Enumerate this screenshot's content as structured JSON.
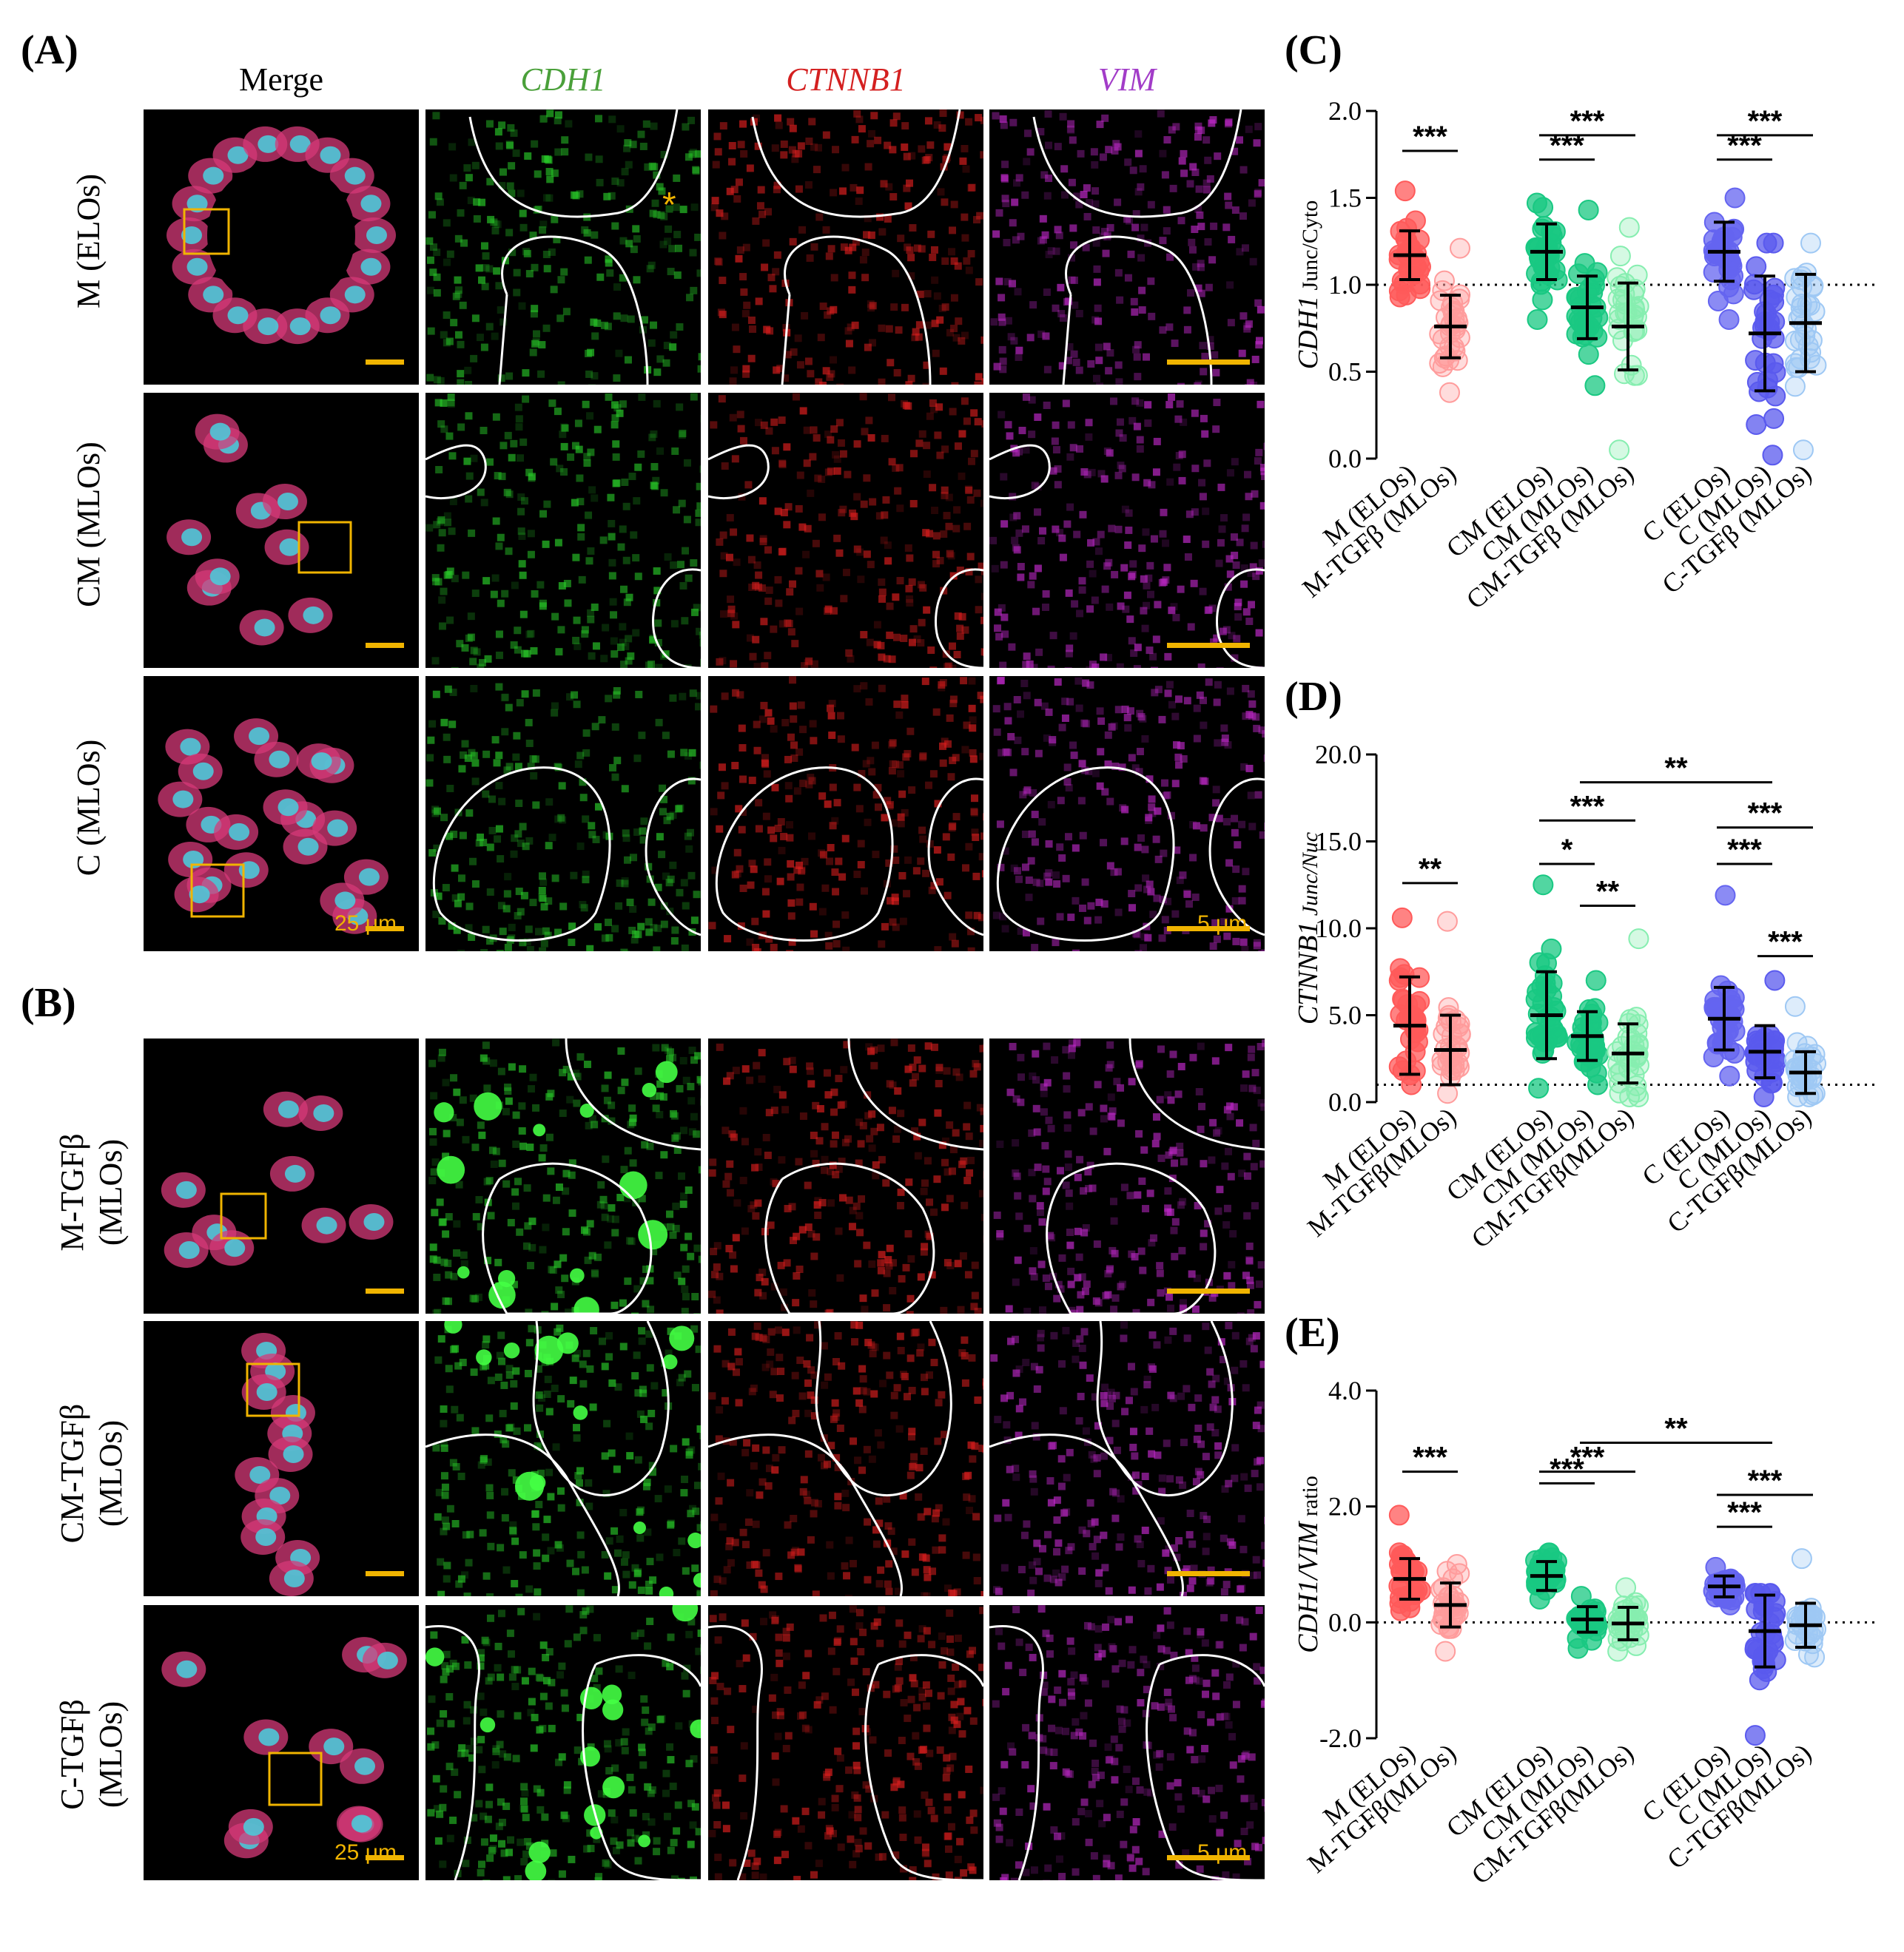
{
  "panels": {
    "A": "(A)",
    "B": "(B)",
    "C": "(C)",
    "D": "(D)",
    "E": "(E)"
  },
  "columns": [
    "Merge",
    "CDH1",
    "CTNNB1",
    "VIM"
  ],
  "column_colors": [
    "#000000",
    "#4aa03a",
    "#d42020",
    "#a23cc8"
  ],
  "rows_A": [
    "M (ELOs)",
    "CM (MLOs)",
    "C (MLOs)"
  ],
  "rows_B": [
    "M-TGFβ\n(MLOs)",
    "CM-TGFβ\n(MLOs)",
    "C-TGFβ\n(MLOs)"
  ],
  "scale_bars": {
    "merge": "25 μm",
    "zoom": "5 μm"
  },
  "asterisk": "*",
  "chart_data": [
    {
      "panel": "C",
      "type": "scatter",
      "ylabel_main": "CDH1",
      "ylabel_sub": " Junc/Cyto",
      "yticks": [
        "0.0",
        "0.5",
        "1.0",
        "1.5",
        "2.0"
      ],
      "ylim": [
        0,
        2
      ],
      "reference_line": 1.0,
      "categories": [
        "M (ELOs)",
        "M-TGFβ (MLOs)",
        "CM (ELOs)",
        "CM (MLOs)",
        "CM-TGFβ (MLOs)",
        "C (ELOs)",
        "C (MLOs)",
        "C-TGFβ (MLOs)"
      ],
      "means": [
        1.17,
        0.76,
        1.19,
        0.87,
        0.76,
        1.19,
        0.72,
        0.78
      ],
      "sd": [
        0.14,
        0.18,
        0.16,
        0.18,
        0.25,
        0.17,
        0.33,
        0.28
      ],
      "ranges": [
        [
          0.93,
          1.54
        ],
        [
          0.38,
          1.21
        ],
        [
          0.8,
          1.47
        ],
        [
          0.42,
          1.43
        ],
        [
          0.05,
          1.33
        ],
        [
          0.8,
          1.5
        ],
        [
          0.02,
          1.24
        ],
        [
          0.05,
          1.24
        ]
      ],
      "significance": [
        {
          "from": 0,
          "to": 1,
          "label": "***",
          "level": 1.77
        },
        {
          "from": 2,
          "to": 3,
          "label": "***",
          "level": 1.72
        },
        {
          "from": 2,
          "to": 4,
          "label": "***",
          "level": 1.86
        },
        {
          "from": 5,
          "to": 6,
          "label": "***",
          "level": 1.72
        },
        {
          "from": 5,
          "to": 7,
          "label": "***",
          "level": 1.86
        }
      ]
    },
    {
      "panel": "D",
      "type": "scatter",
      "ylabel_main": "CTNNB1",
      "ylabel_sub": " Junc/Nuc",
      "ylabel_sub_italic": true,
      "yticks": [
        "0.0",
        "5.0",
        "10.0",
        "15.0",
        "20.0"
      ],
      "ylim": [
        0,
        20
      ],
      "reference_line": 1.0,
      "categories": [
        "M (ELOs)",
        "M-TGFβ(MLOs)",
        "CM (ELOs)",
        "CM (MLOs)",
        "CM-TGFβ(MLOs)",
        "C (ELOs)",
        "C (MLOs)",
        "C-TGFβ(MLOs)"
      ],
      "means": [
        4.4,
        3.0,
        5.0,
        3.8,
        2.8,
        4.8,
        2.9,
        1.7
      ],
      "sd": [
        2.8,
        2.0,
        2.5,
        1.4,
        1.7,
        1.8,
        1.5,
        1.2
      ],
      "ranges": [
        [
          1.0,
          10.6
        ],
        [
          0.5,
          10.4
        ],
        [
          0.8,
          12.5
        ],
        [
          1.0,
          7.0
        ],
        [
          0.3,
          9.4
        ],
        [
          1.5,
          11.9
        ],
        [
          0.3,
          7.0
        ],
        [
          0.3,
          5.5
        ]
      ],
      "significance": [
        {
          "from": 0,
          "to": 1,
          "label": "**",
          "level": 12.6
        },
        {
          "from": 2,
          "to": 3,
          "label": "*",
          "level": 13.7
        },
        {
          "from": 2,
          "to": 4,
          "label": "***",
          "level": 16.2
        },
        {
          "from": 3,
          "to": 4,
          "label": "**",
          "level": 11.3
        },
        {
          "from": 3,
          "to": 6,
          "label": "**",
          "level": 18.4
        },
        {
          "from": 5,
          "to": 6,
          "label": "***",
          "level": 13.7
        },
        {
          "from": 5,
          "to": 7,
          "label": "***",
          "level": 15.8
        },
        {
          "from": 6,
          "to": 7,
          "label": "***",
          "level": 8.4
        }
      ]
    },
    {
      "panel": "E",
      "type": "scatter",
      "ylabel_main": "CDH1/VIM",
      "ylabel_sub": " ratio",
      "ylabel_sub_italic": false,
      "yticks": [
        "-2.0",
        "0.0",
        "2.0",
        "4.0"
      ],
      "ylim": [
        -2,
        4
      ],
      "reference_line": 0.0,
      "categories": [
        "M (ELOs)",
        "M-TGFβ(MLOs)",
        "CM (ELOs)",
        "CM (MLOs)",
        "CM-TGFβ(MLOs)",
        "C (ELOs)",
        "C (MLOs)",
        "C-TGFβ(MLOs)"
      ],
      "means": [
        0.75,
        0.3,
        0.8,
        0.05,
        -0.02,
        0.62,
        -0.15,
        -0.05
      ],
      "sd": [
        0.35,
        0.38,
        0.25,
        0.22,
        0.28,
        0.18,
        0.62,
        0.38
      ],
      "ranges": [
        [
          0.2,
          1.85
        ],
        [
          -0.5,
          1.0
        ],
        [
          0.4,
          1.2
        ],
        [
          -0.45,
          0.45
        ],
        [
          -0.5,
          0.6
        ],
        [
          0.3,
          0.95
        ],
        [
          -1.95,
          0.5
        ],
        [
          -0.6,
          1.1
        ]
      ],
      "significance": [
        {
          "from": 0,
          "to": 1,
          "label": "***",
          "level": 2.6
        },
        {
          "from": 2,
          "to": 3,
          "label": "***",
          "level": 2.4
        },
        {
          "from": 2,
          "to": 4,
          "label": "***",
          "level": 2.6
        },
        {
          "from": 3,
          "to": 6,
          "label": "**",
          "level": 3.1
        },
        {
          "from": 5,
          "to": 6,
          "label": "***",
          "level": 1.65
        },
        {
          "from": 5,
          "to": 7,
          "label": "***",
          "level": 2.2
        }
      ]
    }
  ],
  "group_colors": [
    "#ff5a5a",
    "#ff9c9c",
    "#18c882",
    "#1ac882",
    "#86eeb0",
    "#6464f0",
    "#5a5aee",
    "#9ec8f4"
  ],
  "group_fill_alpha": [
    0.75,
    0.35,
    0.75,
    0.75,
    0.35,
    0.75,
    0.75,
    0.35
  ]
}
